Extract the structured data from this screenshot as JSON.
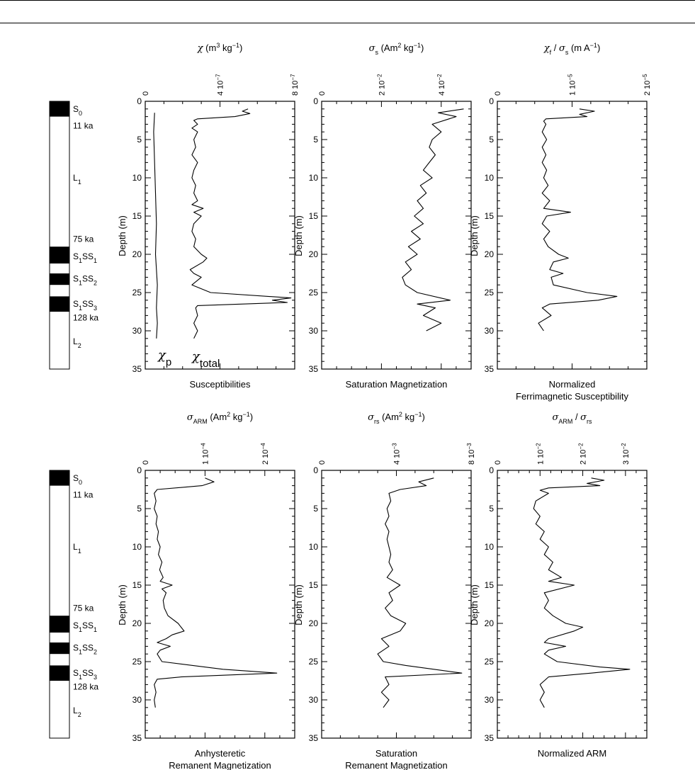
{
  "rules": [
    "",
    ""
  ],
  "column_units": [
    "11 ka",
    "75 ka",
    "128 ka"
  ],
  "column_labels": [
    {
      "base": "S",
      "sub": "0"
    },
    {
      "base": "L",
      "sub": "1"
    },
    {
      "base": "S",
      "sub": "1",
      "base2": "SS",
      "sub2": "1"
    },
    {
      "base": "S",
      "sub": "1",
      "base2": "SS",
      "sub2": "2"
    },
    {
      "base": "S",
      "sub": "1",
      "base2": "SS",
      "sub2": "3"
    },
    {
      "base": "L",
      "sub": "2"
    }
  ],
  "ylabel": "Depth (m)",
  "chart_data": [
    {
      "type": "line",
      "title": "χ (m3 kg−1)",
      "caption": [
        "Susceptibilities"
      ],
      "xlim": [
        0,
        8e-07
      ],
      "ylim": [
        0,
        35
      ],
      "x_ticks": [
        "0",
        "4 10−7",
        "8 10−7"
      ],
      "y_ticks": [
        "0",
        "5",
        "10",
        "15",
        "20",
        "25",
        "30",
        "35"
      ],
      "annotations": [
        "χp",
        "χtotal"
      ],
      "series": [
        {
          "name": "χp",
          "depth": [
            1.5,
            4,
            8,
            12,
            16,
            20,
            24,
            27,
            29,
            31
          ],
          "values": [
            5e-08,
            4.5e-08,
            5e-08,
            5.5e-08,
            6e-08,
            5.5e-08,
            6.5e-08,
            6e-08,
            6.5e-08,
            6e-08
          ]
        },
        {
          "name": "χtotal",
          "depth": [
            1,
            1.3,
            1.6,
            2,
            2.3,
            2.5,
            3,
            3.5,
            4,
            5,
            6,
            7,
            8,
            9,
            10,
            11,
            12,
            13,
            13.5,
            14,
            14.5,
            15,
            16,
            17,
            18,
            19,
            20,
            20.5,
            21,
            22,
            22.5,
            23,
            24,
            25,
            25.7,
            26,
            26.3,
            26.7,
            27,
            28,
            29,
            30,
            31
          ],
          "values": [
            5.5e-07,
            5.2e-07,
            5.6e-07,
            4.8e-07,
            2.8e-07,
            2.6e-07,
            2.8e-07,
            2.5e-07,
            2.8e-07,
            2.6e-07,
            2.7e-07,
            2.5e-07,
            2.8e-07,
            2.6e-07,
            2.5e-07,
            2.7e-07,
            2.6e-07,
            2.8e-07,
            2.5e-07,
            3.1e-07,
            2.6e-07,
            3e-07,
            2.6e-07,
            2.5e-07,
            2.7e-07,
            2.6e-07,
            3e-07,
            3.3e-07,
            3.1e-07,
            2.4e-07,
            2.6e-07,
            3e-07,
            2.5e-07,
            3.5e-07,
            7.8e-07,
            6.8e-07,
            7.6e-07,
            2.8e-07,
            2.7e-07,
            2.8e-07,
            2.6e-07,
            2.8e-07,
            2.6e-07
          ]
        }
      ]
    },
    {
      "type": "line",
      "title": "σs (Am2 kg−1)",
      "caption": [
        "Saturation Magnetization"
      ],
      "xlim": [
        0,
        0.05
      ],
      "ylim": [
        0,
        35
      ],
      "x_ticks": [
        "0",
        "2 10−2",
        "4 10−2"
      ],
      "y_ticks": [
        "0",
        "5",
        "10",
        "15",
        "20",
        "25",
        "30",
        "35"
      ],
      "series": [
        {
          "name": "",
          "depth": [
            1,
            1.5,
            2,
            3,
            4,
            5,
            6,
            7,
            8,
            9,
            10,
            11,
            12,
            13,
            14,
            15,
            16,
            17,
            18,
            19,
            20,
            21,
            22,
            23,
            24,
            25,
            26,
            26.5,
            27,
            28,
            29,
            30
          ],
          "values": [
            0.0475,
            0.039,
            0.045,
            0.037,
            0.04,
            0.037,
            0.036,
            0.038,
            0.036,
            0.034,
            0.037,
            0.033,
            0.035,
            0.032,
            0.034,
            0.031,
            0.034,
            0.03,
            0.033,
            0.029,
            0.032,
            0.028,
            0.03,
            0.027,
            0.028,
            0.032,
            0.043,
            0.032,
            0.038,
            0.034,
            0.04,
            0.035
          ]
        }
      ]
    },
    {
      "type": "line",
      "title": "χf / σs (m A−1)",
      "caption": [
        "Normalized",
        "Ferrimagnetic Susceptibility"
      ],
      "xlim": [
        0,
        2e-05
      ],
      "ylim": [
        0,
        35
      ],
      "x_ticks": [
        "0",
        "1 10−5",
        "2 10−5"
      ],
      "y_ticks": [
        "0",
        "5",
        "10",
        "15",
        "20",
        "25",
        "30",
        "35"
      ],
      "series": [
        {
          "name": "",
          "depth": [
            1,
            1.3,
            1.7,
            2,
            2.3,
            2.6,
            3,
            4,
            5,
            6,
            7,
            8,
            9,
            10,
            11,
            12,
            13,
            14,
            14.5,
            15,
            16,
            17,
            18,
            19,
            20,
            20.5,
            21,
            22,
            22.5,
            23,
            24,
            25,
            25.5,
            26,
            26.5,
            27,
            28,
            29,
            30
          ],
          "values": [
            1.1e-05,
            1.3e-05,
            1.1e-05,
            1.2e-05,
            6.5e-06,
            6.2e-06,
            6.5e-06,
            6e-06,
            6.6e-06,
            6e-06,
            6.5e-06,
            6e-06,
            6.6e-06,
            6.2e-06,
            6.8e-06,
            6e-06,
            7e-06,
            6.2e-06,
            9.8e-06,
            6.6e-06,
            6e-06,
            7e-06,
            6.2e-06,
            6.8e-06,
            8.2e-06,
            9.5e-06,
            7.5e-06,
            7e-06,
            8.8e-06,
            7.2e-06,
            7.5e-06,
            1.2e-05,
            1.6e-05,
            1.35e-05,
            7e-06,
            6e-06,
            7.2e-06,
            5.5e-06,
            6.2e-06
          ]
        }
      ]
    },
    {
      "type": "line",
      "title": "σARM (Am2 kg−1)",
      "caption": [
        "Anhysteretic",
        "Remanent Magnetization"
      ],
      "xlim": [
        0,
        0.00025
      ],
      "ylim": [
        0,
        35
      ],
      "x_ticks": [
        "0",
        "1 10−4",
        "2 10−4"
      ],
      "y_ticks": [
        "0",
        "5",
        "10",
        "15",
        "20",
        "25",
        "30",
        "35"
      ],
      "series": [
        {
          "name": "",
          "depth": [
            1,
            1.5,
            2,
            2.5,
            3,
            4,
            5,
            6,
            7,
            8,
            9,
            10,
            11,
            12,
            13,
            14,
            14.5,
            15,
            15.5,
            16,
            17,
            18,
            19,
            20,
            20.5,
            21,
            21.5,
            22,
            22.5,
            23,
            23.5,
            24,
            25,
            26,
            26.5,
            27,
            27.3,
            28,
            29,
            30,
            31
          ],
          "values": [
            0.0001,
            0.000115,
            9.5e-05,
            2e-05,
            1.5e-05,
            1.8e-05,
            1.5e-05,
            2e-05,
            1.8e-05,
            2.2e-05,
            2e-05,
            2.5e-05,
            2.2e-05,
            2.8e-05,
            2.4e-05,
            3e-05,
            2.5e-05,
            4.5e-05,
            2.8e-05,
            3.5e-05,
            3e-05,
            3.2e-05,
            3.8e-05,
            5.5e-05,
            6e-05,
            6.5e-05,
            4.5e-05,
            3.5e-05,
            2e-05,
            4.2e-05,
            2.5e-05,
            2e-05,
            2.8e-05,
            0.00013,
            0.00022,
            6e-05,
            2e-05,
            1.5e-05,
            1.8e-05,
            1.5e-05,
            1.7e-05
          ]
        }
      ]
    },
    {
      "type": "line",
      "title": "σrs (Am2 kg−1)",
      "caption": [
        "Saturation",
        "Remanent Magnetization"
      ],
      "xlim": [
        0,
        0.008
      ],
      "ylim": [
        0,
        35
      ],
      "x_ticks": [
        "0",
        "4 10−3",
        "8 10−3"
      ],
      "y_ticks": [
        "0",
        "5",
        "10",
        "15",
        "20",
        "25",
        "30",
        "35"
      ],
      "series": [
        {
          "name": "",
          "depth": [
            1,
            1.5,
            2,
            2.5,
            3,
            4,
            5,
            6,
            7,
            8,
            9,
            10,
            11,
            12,
            13,
            14,
            15,
            16,
            17,
            18,
            19,
            20,
            21,
            22,
            23,
            24,
            25,
            25.5,
            26,
            26.5,
            27,
            28,
            29,
            30,
            31
          ],
          "values": [
            0.006,
            0.0052,
            0.0056,
            0.0042,
            0.0036,
            0.0037,
            0.0035,
            0.0036,
            0.0034,
            0.0036,
            0.0035,
            0.0036,
            0.0037,
            0.0036,
            0.0038,
            0.0035,
            0.0042,
            0.0036,
            0.0038,
            0.0034,
            0.0037,
            0.0045,
            0.0042,
            0.0032,
            0.0036,
            0.003,
            0.0033,
            0.0045,
            0.006,
            0.0075,
            0.0034,
            0.0036,
            0.0032,
            0.0036,
            0.0033
          ]
        }
      ]
    },
    {
      "type": "line",
      "title": "σARM / σrs",
      "caption": [
        "Normalized ARM"
      ],
      "xlim": [
        0,
        0.035
      ],
      "ylim": [
        0,
        35
      ],
      "x_ticks": [
        "0",
        "1 10−2",
        "2 10−2",
        "3 10−2"
      ],
      "y_ticks": [
        "0",
        "5",
        "10",
        "15",
        "20",
        "25",
        "30",
        "35"
      ],
      "series": [
        {
          "name": "",
          "depth": [
            1,
            1.3,
            1.7,
            2,
            2.3,
            2.6,
            3,
            4,
            5,
            6,
            7,
            8,
            9,
            10,
            11,
            12,
            13,
            14,
            14.5,
            15,
            16,
            17,
            18,
            19,
            20,
            20.5,
            21,
            22,
            22.5,
            23,
            23.5,
            24,
            25,
            25.7,
            26,
            26.5,
            27,
            28,
            29,
            30,
            31
          ],
          "values": [
            0.022,
            0.025,
            0.021,
            0.024,
            0.012,
            0.01,
            0.012,
            0.009,
            0.0085,
            0.01,
            0.009,
            0.011,
            0.01,
            0.012,
            0.011,
            0.013,
            0.012,
            0.015,
            0.012,
            0.018,
            0.011,
            0.012,
            0.011,
            0.013,
            0.016,
            0.02,
            0.018,
            0.012,
            0.011,
            0.016,
            0.012,
            0.011,
            0.014,
            0.024,
            0.031,
            0.022,
            0.012,
            0.01,
            0.011,
            0.01,
            0.011
          ]
        }
      ]
    }
  ]
}
